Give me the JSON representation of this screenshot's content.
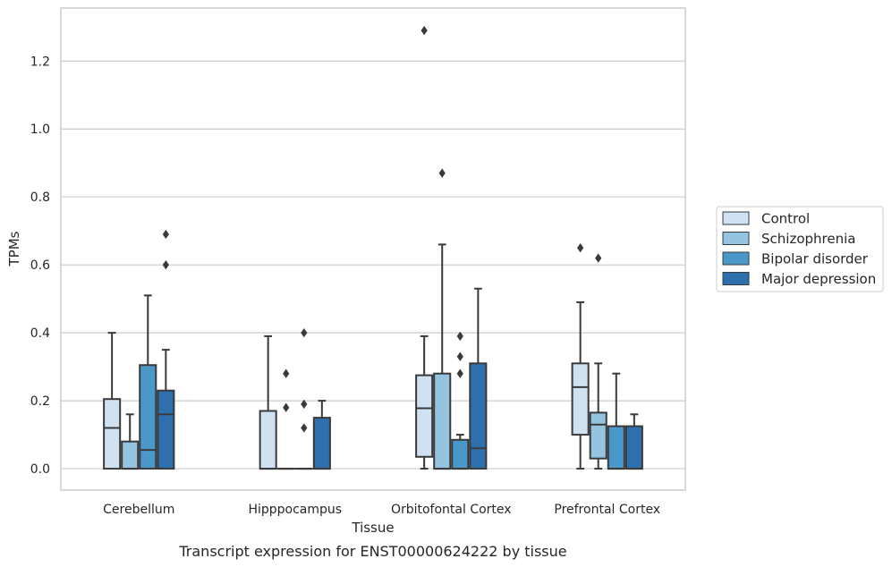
{
  "caption": "Transcript expression for ENST00000624222 by tissue",
  "chart_data": {
    "type": "box",
    "xlabel": "Tissue",
    "ylabel": "TPMs",
    "ylim": [
      -0.063,
      1.356
    ],
    "yticks": [
      "0.0",
      "0.2",
      "0.4",
      "0.6",
      "0.8",
      "1.0",
      "1.2"
    ],
    "grid": "horizontal",
    "legend_position": "right",
    "categories": [
      "Cerebellum",
      "Hipppocampus",
      "Orbitofontal Cortex",
      "Prefrontal Cortex"
    ],
    "series": [
      {
        "name": "Control",
        "color": "#d0e1f2",
        "boxes": [
          {
            "whisker_low": 0.0,
            "q1": 0.0,
            "median": 0.12,
            "q3": 0.205,
            "whisker_high": 0.4,
            "outliers": []
          },
          {
            "whisker_low": 0.0,
            "q1": 0.0,
            "median": 0.0,
            "q3": 0.17,
            "whisker_high": 0.39,
            "outliers": []
          },
          {
            "whisker_low": 0.0,
            "q1": 0.035,
            "median": 0.178,
            "q3": 0.275,
            "whisker_high": 0.39,
            "outliers": [
              1.29
            ]
          },
          {
            "whisker_low": 0.0,
            "q1": 0.1,
            "median": 0.24,
            "q3": 0.31,
            "whisker_high": 0.49,
            "outliers": [
              0.65
            ]
          }
        ]
      },
      {
        "name": "Schizophrenia",
        "color": "#94c4df",
        "boxes": [
          {
            "whisker_low": 0.0,
            "q1": 0.0,
            "median": 0.0,
            "q3": 0.08,
            "whisker_high": 0.16,
            "outliers": []
          },
          {
            "whisker_low": 0.0,
            "q1": 0.0,
            "median": 0.0,
            "q3": 0.0,
            "whisker_high": 0.0,
            "outliers": [
              0.28,
              0.18
            ]
          },
          {
            "whisker_low": 0.0,
            "q1": 0.0,
            "median": 0.0,
            "q3": 0.28,
            "whisker_high": 0.66,
            "outliers": [
              0.87
            ]
          },
          {
            "whisker_low": 0.0,
            "q1": 0.03,
            "median": 0.13,
            "q3": 0.165,
            "whisker_high": 0.31,
            "outliers": [
              0.62
            ]
          }
        ]
      },
      {
        "name": "Bipolar disorder",
        "color": "#4a98c9",
        "boxes": [
          {
            "whisker_low": 0.0,
            "q1": 0.0,
            "median": 0.055,
            "q3": 0.305,
            "whisker_high": 0.51,
            "outliers": []
          },
          {
            "whisker_low": 0.0,
            "q1": 0.0,
            "median": 0.0,
            "q3": 0.0,
            "whisker_high": 0.0,
            "outliers": [
              0.4,
              0.19,
              0.12
            ]
          },
          {
            "whisker_low": 0.0,
            "q1": 0.0,
            "median": 0.0,
            "q3": 0.085,
            "whisker_high": 0.1,
            "outliers": [
              0.39,
              0.33,
              0.28
            ]
          },
          {
            "whisker_low": 0.0,
            "q1": 0.0,
            "median": 0.0,
            "q3": 0.125,
            "whisker_high": 0.28,
            "outliers": []
          }
        ]
      },
      {
        "name": "Major depression",
        "color": "#2e6fae",
        "boxes": [
          {
            "whisker_low": 0.0,
            "q1": 0.0,
            "median": 0.16,
            "q3": 0.23,
            "whisker_high": 0.35,
            "outliers": [
              0.69,
              0.6
            ]
          },
          {
            "whisker_low": 0.0,
            "q1": 0.0,
            "median": 0.0,
            "q3": 0.15,
            "whisker_high": 0.2,
            "outliers": []
          },
          {
            "whisker_low": 0.0,
            "q1": 0.0,
            "median": 0.06,
            "q3": 0.31,
            "whisker_high": 0.53,
            "outliers": []
          },
          {
            "whisker_low": 0.0,
            "q1": 0.0,
            "median": 0.0,
            "q3": 0.125,
            "whisker_high": 0.16,
            "outliers": []
          }
        ]
      }
    ]
  }
}
